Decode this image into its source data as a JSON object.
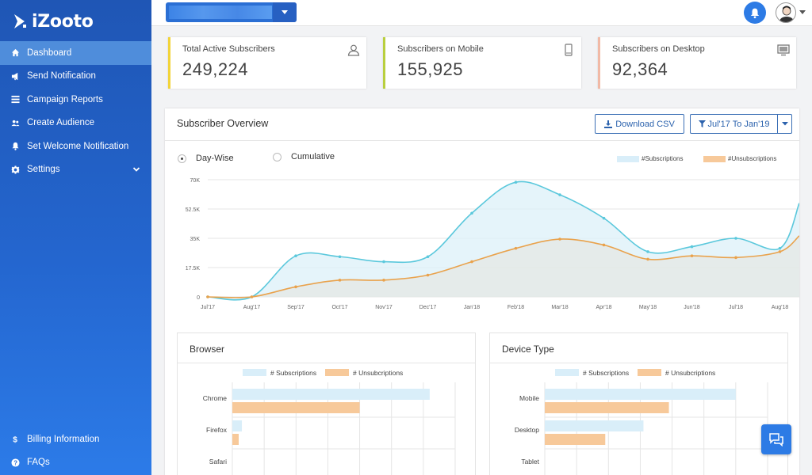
{
  "brand": {
    "name": "iZooto"
  },
  "sidebar": {
    "items": [
      {
        "label": "Dashboard",
        "icon": "home-icon",
        "active": true
      },
      {
        "label": "Send Notification",
        "icon": "megaphone-icon"
      },
      {
        "label": "Campaign Reports",
        "icon": "list-icon"
      },
      {
        "label": "Create Audience",
        "icon": "users-icon"
      },
      {
        "label": "Set Welcome Notification",
        "icon": "bell-icon"
      },
      {
        "label": "Settings",
        "icon": "gear-icon"
      }
    ],
    "bottom_items": [
      {
        "label": "Billing Information",
        "icon": "dollar-icon"
      },
      {
        "label": "FAQs",
        "icon": "question-icon"
      }
    ]
  },
  "stats": [
    {
      "label": "Total Active Subscribers",
      "value": "249,224",
      "icon": "user-icon",
      "color": "#f2d43a"
    },
    {
      "label": "Subscribers on Mobile",
      "value": "155,925",
      "icon": "mobile-icon",
      "color": "#b9cf3e"
    },
    {
      "label": "Subscribers on Desktop",
      "value": "92,364",
      "icon": "desktop-icon",
      "color": "#f1b9a6"
    }
  ],
  "overview": {
    "title": "Subscriber Overview",
    "download_label": "Download CSV",
    "date_range_label": "Jul'17 To Jan'19",
    "radio_day": "Day-Wise",
    "radio_cumulative": "Cumulative",
    "legend_sub": "#Subscriptions",
    "legend_unsub": "#Unsubscriptions"
  },
  "browser": {
    "title": "Browser",
    "legend_sub": "# Subscriptions",
    "legend_unsub": "# Unsubcriptions"
  },
  "device": {
    "title": "Device Type",
    "legend_sub": "# Subscriptions",
    "legend_unsub": "# Unsubcriptions"
  },
  "colors": {
    "sub_line": "#5bc8dc",
    "sub_fill": "#dcf0f8",
    "unsub_line": "#e9a24c",
    "unsub_fill": "#f7d1a5",
    "accent": "#2d7be5"
  },
  "chart_data": [
    {
      "type": "area",
      "title": "",
      "categories": [
        "Jul'17",
        "Aug'17",
        "Sep'17",
        "Oct'17",
        "Nov'17",
        "Dec'17",
        "Jan'18",
        "Feb'18",
        "Mar'18",
        "Apr'18",
        "May'18",
        "Jun'18",
        "Jul'18",
        "Aug'18"
      ],
      "y_ticks": [
        "0",
        "17.5K",
        "35K",
        "52.5K",
        "70K"
      ],
      "ylim": [
        0,
        70000
      ],
      "grid": true,
      "legend_position": "top-right",
      "series": [
        {
          "name": "#Subscriptions",
          "values": [
            0,
            0,
            24500,
            24000,
            21000,
            24000,
            50000,
            68500,
            61000,
            47000,
            27000,
            30000,
            35000,
            29000
          ]
        },
        {
          "name": "#Unsubscriptions",
          "values": [
            0,
            0,
            6000,
            10000,
            10000,
            13000,
            21000,
            29000,
            34500,
            31000,
            22500,
            24500,
            23500,
            27000
          ]
        }
      ]
    },
    {
      "type": "bar",
      "title": "Browser",
      "categories": [
        "Chrome",
        "Firefox",
        "Safari"
      ],
      "series": [
        {
          "name": "# Subscriptions",
          "values": [
            62,
            3,
            0
          ]
        },
        {
          "name": "# Unsubcriptions",
          "values": [
            40,
            2,
            0
          ]
        }
      ],
      "xlim": [
        0,
        70
      ]
    },
    {
      "type": "bar",
      "title": "Device Type",
      "categories": [
        "Mobile",
        "Desktop",
        "Tablet"
      ],
      "series": [
        {
          "name": "# Subscriptions",
          "values": [
            60,
            31,
            0
          ]
        },
        {
          "name": "# Unsubcriptions",
          "values": [
            39,
            19,
            0
          ]
        }
      ],
      "xlim": [
        0,
        70
      ]
    }
  ]
}
